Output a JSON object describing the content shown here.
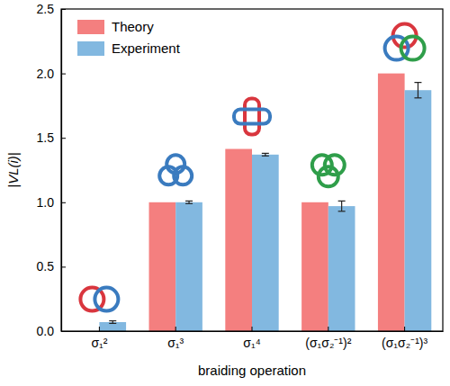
{
  "chart_data": {
    "type": "bar",
    "x_label": "braiding operation",
    "y_label": "|VL(i)|",
    "categories": [
      "σ₁²",
      "σ₁³",
      "σ₁⁴",
      "(σ₁σ₂⁻¹)²",
      "(σ₁σ₂⁻¹)³"
    ],
    "series": [
      {
        "name": "Theory",
        "color": "#f47f7f",
        "values": [
          0,
          1.0,
          1.414,
          1.0,
          2.0
        ]
      },
      {
        "name": "Experiment",
        "color": "#82b8e0",
        "values": [
          0.07,
          1.0,
          1.37,
          0.97,
          1.87
        ],
        "errors": [
          0.01,
          0.01,
          0.01,
          0.04,
          0.06
        ]
      }
    ],
    "ylim": [
      0,
      2.5
    ],
    "yticks": [
      {
        "value": 0,
        "label": "0.0"
      },
      {
        "value": 0.5,
        "label": "0.5"
      },
      {
        "value": 1,
        "label": "1.0"
      },
      {
        "value": 1.5,
        "label": "1.5"
      },
      {
        "value": 2,
        "label": "2.0"
      },
      {
        "value": 2.5,
        "label": "2.5"
      }
    ],
    "legend": "upper left",
    "grid": false
  }
}
